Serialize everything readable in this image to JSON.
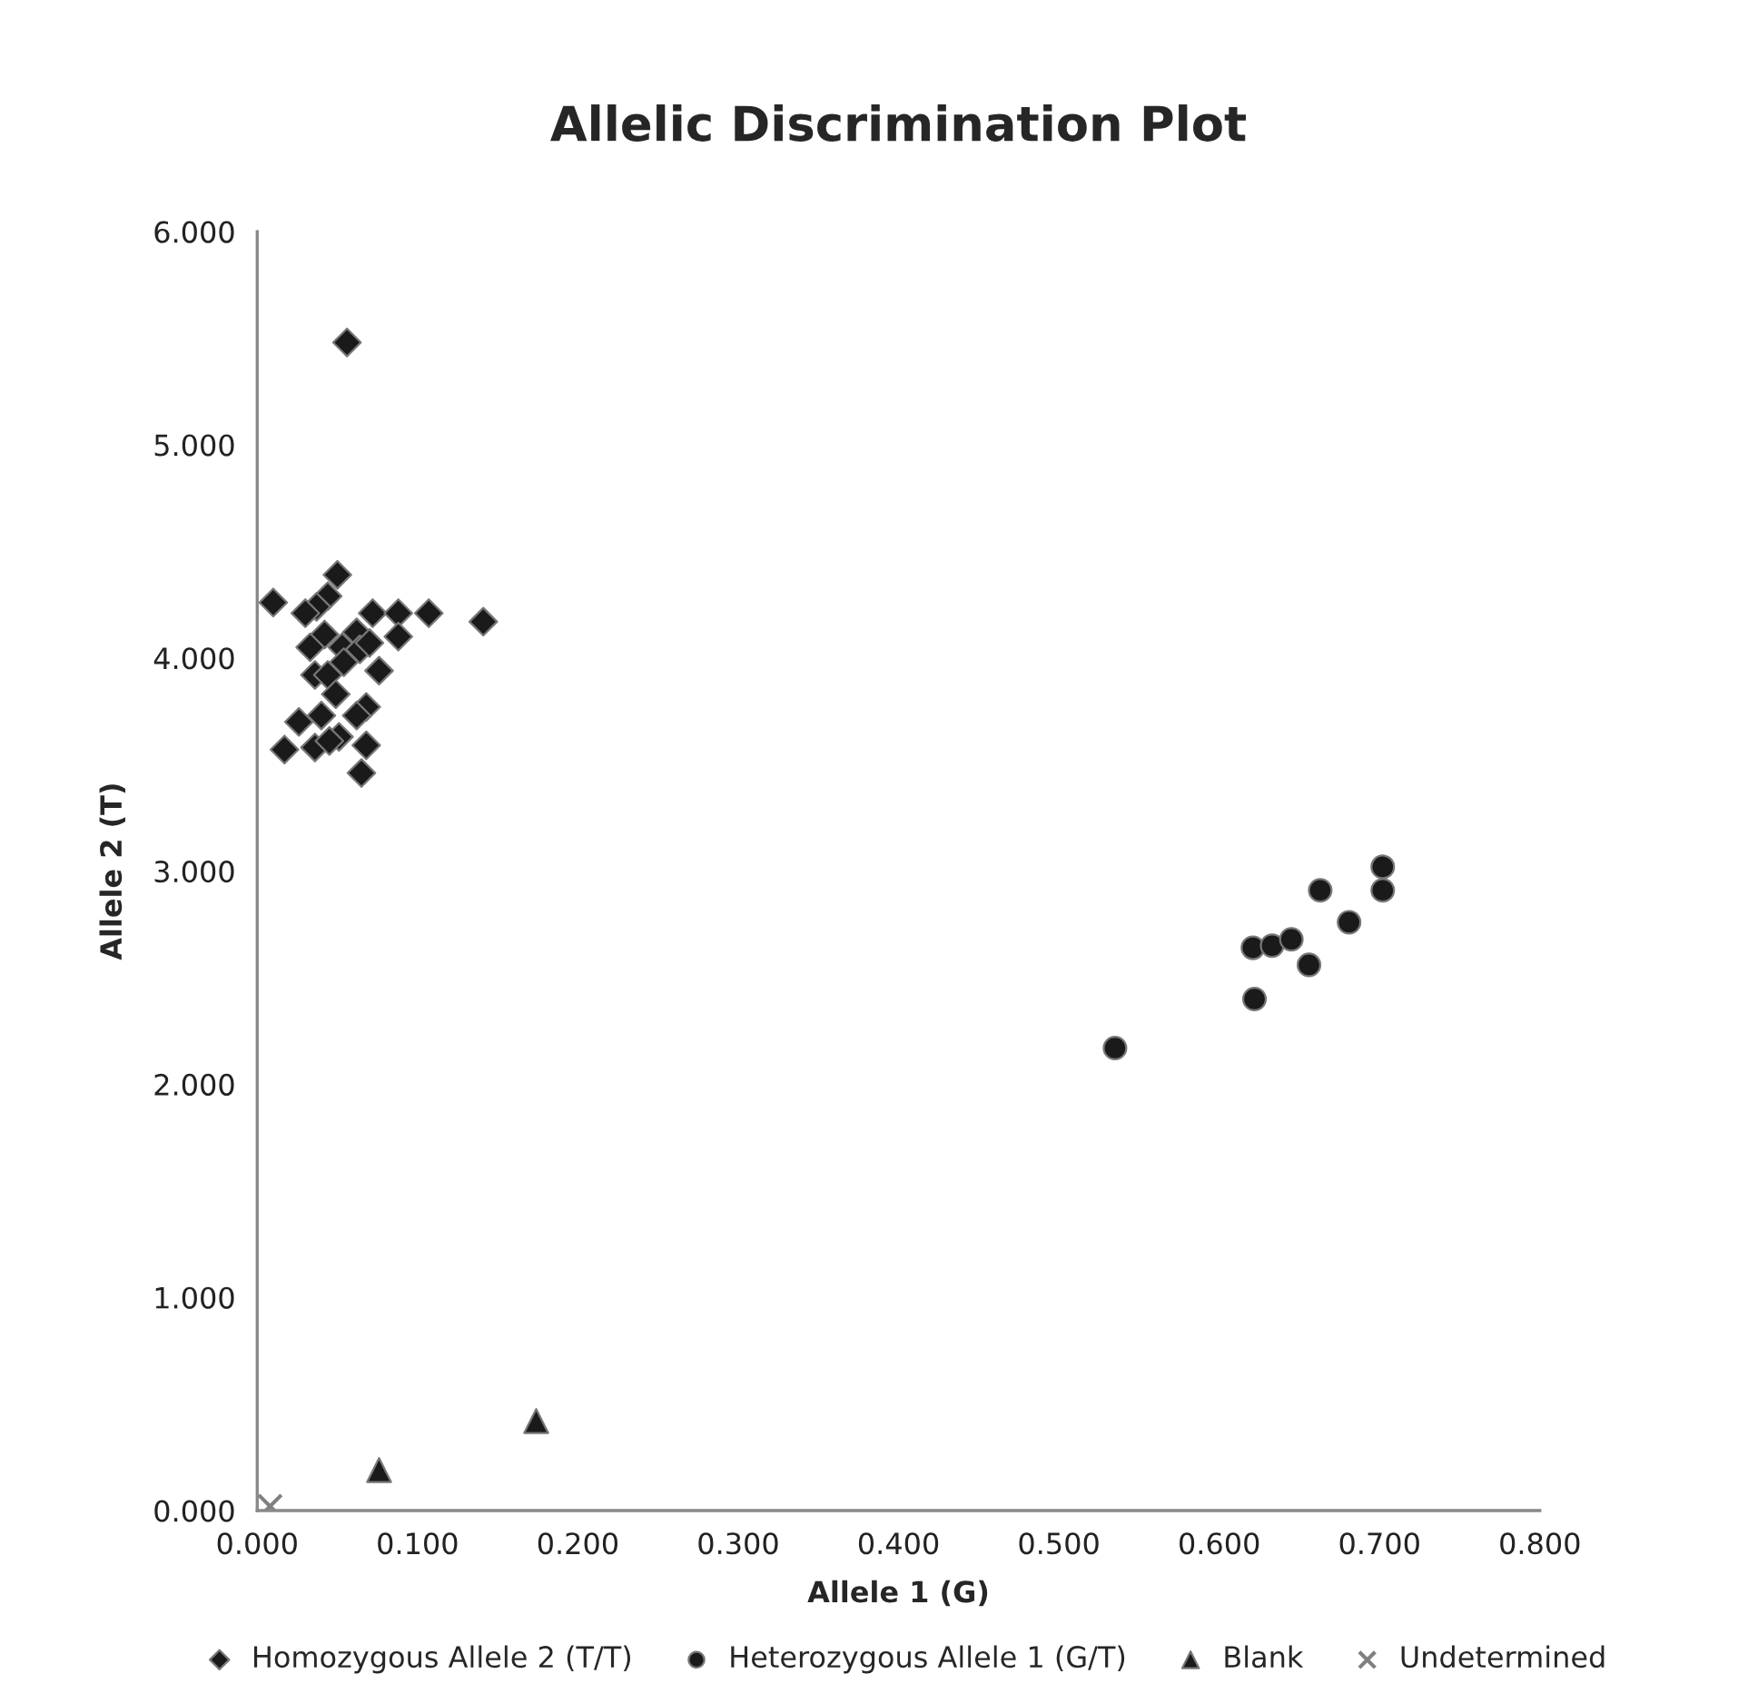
{
  "chart_data": {
    "type": "scatter",
    "title": "Allelic Discrimination Plot",
    "xlabel": "Allele 1 (G)",
    "ylabel": "Allele 2 (T)",
    "xlim": [
      0,
      0.8
    ],
    "xticks": [
      {
        "value": 0,
        "label": "0.000"
      },
      {
        "value": 0.1,
        "label": "0.100"
      },
      {
        "value": 0.2,
        "label": "0.200"
      },
      {
        "value": 0.3,
        "label": "0.300"
      },
      {
        "value": 0.4,
        "label": "0.400"
      },
      {
        "value": 0.5,
        "label": "0.500"
      },
      {
        "value": 0.6,
        "label": "0.600"
      },
      {
        "value": 0.7,
        "label": "0.700"
      },
      {
        "value": 0.8,
        "label": "0.800"
      }
    ],
    "ylim": [
      0,
      6
    ],
    "yticks": [
      {
        "value": 0,
        "label": "0.000"
      },
      {
        "value": 1,
        "label": "1.000"
      },
      {
        "value": 2,
        "label": "2.000"
      },
      {
        "value": 3,
        "label": "3.000"
      },
      {
        "value": 4,
        "label": "4.000"
      },
      {
        "value": 5,
        "label": "5.000"
      },
      {
        "value": 6,
        "label": "6.000"
      }
    ],
    "grid": false,
    "legend": "bottom",
    "series": [
      {
        "name": "Homozygous Allele 2 (T/T)",
        "color": "#1a1a1a",
        "marker": "diamond",
        "x": [
          0.056,
          0.05,
          0.01,
          0.044,
          0.037,
          0.03,
          0.072,
          0.088,
          0.107,
          0.141,
          0.042,
          0.062,
          0.088,
          0.033,
          0.053,
          0.064,
          0.07,
          0.076,
          0.036,
          0.044,
          0.054,
          0.049,
          0.068,
          0.062,
          0.026,
          0.04,
          0.051,
          0.036,
          0.017,
          0.068,
          0.065,
          0.045
        ],
        "values": [
          5.48,
          4.39,
          4.26,
          4.29,
          4.24,
          4.21,
          4.21,
          4.21,
          4.21,
          4.17,
          4.11,
          4.12,
          4.1,
          4.05,
          4.05,
          4.04,
          4.07,
          3.94,
          3.92,
          3.92,
          3.98,
          3.83,
          3.77,
          3.73,
          3.7,
          3.73,
          3.63,
          3.58,
          3.57,
          3.59,
          3.46,
          3.61
        ]
      },
      {
        "name": "Heterozygous Allele 1 (G/T)",
        "color": "#1a1a1a",
        "marker": "circle",
        "x": [
          0.535,
          0.622,
          0.621,
          0.633,
          0.645,
          0.656,
          0.663,
          0.681,
          0.702,
          0.702
        ],
        "values": [
          2.17,
          2.4,
          2.64,
          2.65,
          2.68,
          2.56,
          2.91,
          2.76,
          3.02,
          2.91
        ]
      },
      {
        "name": "Blank",
        "color": "#1a1a1a",
        "marker": "triangle",
        "x": [
          0.076,
          0.174
        ],
        "values": [
          0.19,
          0.42
        ]
      },
      {
        "name": "Undetermined",
        "color": "#808080",
        "marker": "cross",
        "x": [
          0.008
        ],
        "values": [
          0.02
        ]
      }
    ]
  }
}
